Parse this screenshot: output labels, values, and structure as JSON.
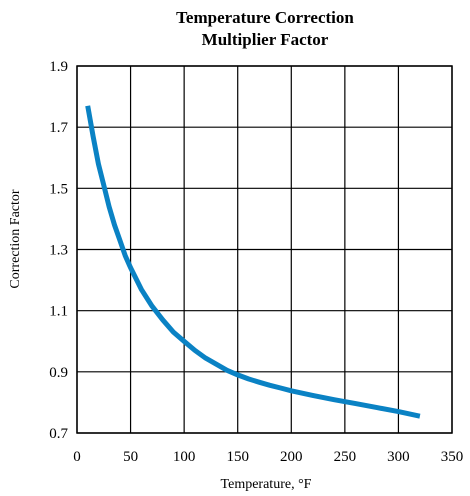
{
  "chart_data": {
    "type": "line",
    "title_lines": [
      "Temperature Correction",
      "Multiplier Factor"
    ],
    "xlabel": "Temperature, °F",
    "ylabel": "Correction Factor",
    "xlim": [
      0,
      350
    ],
    "ylim": [
      0.7,
      1.9
    ],
    "x_ticks": [
      0,
      50,
      100,
      150,
      200,
      250,
      300,
      350
    ],
    "x_tick_labels": [
      "0",
      "50",
      "100",
      "150",
      "200",
      "250",
      "300",
      "350"
    ],
    "y_ticks": [
      0.7,
      0.9,
      1.1,
      1.3,
      1.5,
      1.7,
      1.9
    ],
    "y_tick_labels": [
      "0.7",
      "0.9",
      "1.1",
      "1.3",
      "1.5",
      "1.7",
      "1.9"
    ],
    "x_gridlines": [
      0,
      50,
      100,
      150,
      200,
      250,
      300,
      350
    ],
    "y_gridlines": [
      0.7,
      0.9,
      1.1,
      1.3,
      1.5,
      1.7,
      1.9
    ],
    "grid": true,
    "series": [
      {
        "color": "#0a82c4",
        "x": [
          10,
          15,
          20,
          25,
          30,
          35,
          40,
          45,
          50,
          60,
          70,
          80,
          90,
          100,
          110,
          120,
          130,
          140,
          150,
          160,
          170,
          180,
          190,
          200,
          220,
          240,
          260,
          280,
          300,
          320
        ],
        "y": [
          1.77,
          1.67,
          1.58,
          1.51,
          1.44,
          1.38,
          1.33,
          1.28,
          1.24,
          1.17,
          1.115,
          1.07,
          1.03,
          1.0,
          0.97,
          0.945,
          0.925,
          0.905,
          0.89,
          0.877,
          0.866,
          0.856,
          0.847,
          0.838,
          0.823,
          0.809,
          0.796,
          0.783,
          0.77,
          0.755
        ]
      }
    ]
  }
}
